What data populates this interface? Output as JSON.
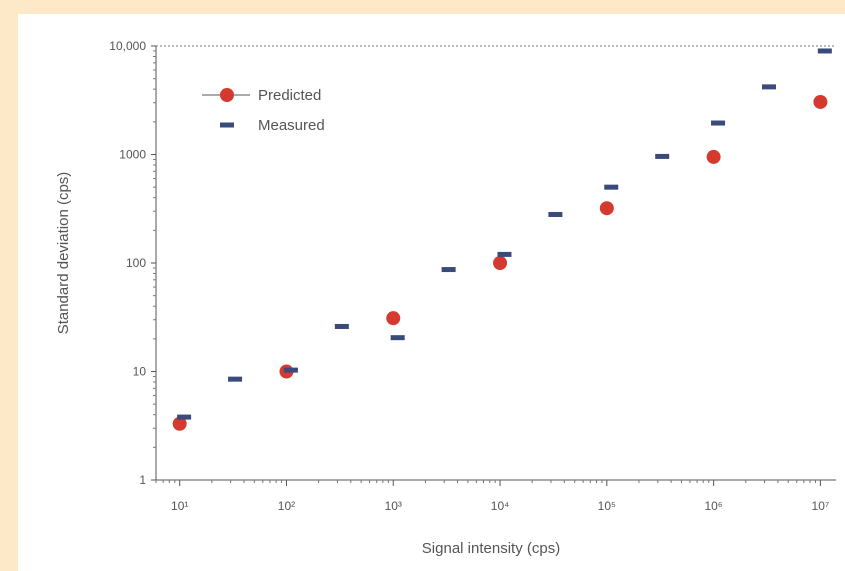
{
  "chart_data": {
    "type": "scatter",
    "title": "",
    "xlabel": "Signal intensity (cps)",
    "ylabel": "Standard deviation (cps)",
    "xscale": "log",
    "yscale": "log",
    "xlim": [
      6,
      14000000
    ],
    "ylim": [
      1,
      10000
    ],
    "x_ticks": [
      10,
      100,
      1000,
      10000,
      100000,
      1000000,
      10000000
    ],
    "x_tick_labels": [
      "10¹",
      "10²",
      "10³",
      "10⁴",
      "10⁵",
      "10⁶",
      "10⁷"
    ],
    "y_ticks": [
      1,
      10,
      100,
      1000,
      10000
    ],
    "y_tick_labels": [
      "1",
      "10",
      "100",
      "1000",
      "10,000"
    ],
    "grid": false,
    "legend_position": "top-left",
    "series": [
      {
        "name": "Predicted",
        "marker": "circle",
        "color": "#d43a2f",
        "x": [
          10,
          100,
          1000,
          10000,
          100000,
          1000000,
          10000000
        ],
        "y": [
          3.3,
          10,
          31,
          100,
          320,
          950,
          3050
        ]
      },
      {
        "name": "Measured",
        "marker": "dash",
        "color": "#3a4a7a",
        "x": [
          11,
          33,
          110,
          330,
          1100,
          3300,
          11000,
          33000,
          110000,
          330000,
          1100000,
          3300000,
          11000000
        ],
        "y": [
          3.8,
          8.5,
          10.3,
          26,
          20.5,
          87,
          120,
          280,
          500,
          960,
          1950,
          4200,
          9000
        ]
      }
    ]
  }
}
